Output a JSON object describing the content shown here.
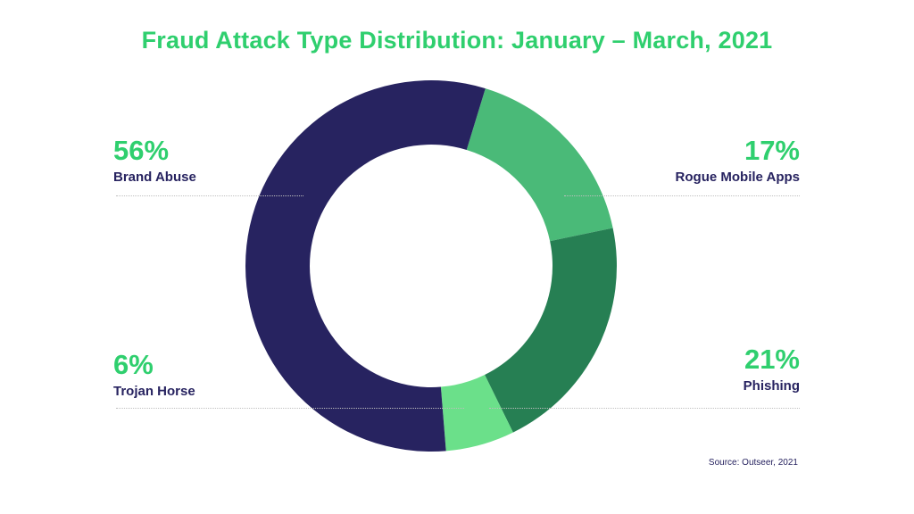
{
  "title": "Fraud Attack Type Distribution: January – March, 2021",
  "source": "Source: Outseer, 2021",
  "chart_data": {
    "type": "pie",
    "donut": true,
    "title": "Fraud Attack Type Distribution: January – March, 2021",
    "categories": [
      "Brand Abuse",
      "Rogue Mobile Apps",
      "Phishing",
      "Trojan Horse"
    ],
    "values": [
      56,
      17,
      21,
      6
    ],
    "value_labels": [
      "56%",
      "17%",
      "21%",
      "6%"
    ],
    "colors": [
      "#272360",
      "#4aba78",
      "#267f53",
      "#6be08a"
    ],
    "legend": "callouts around chart"
  }
}
